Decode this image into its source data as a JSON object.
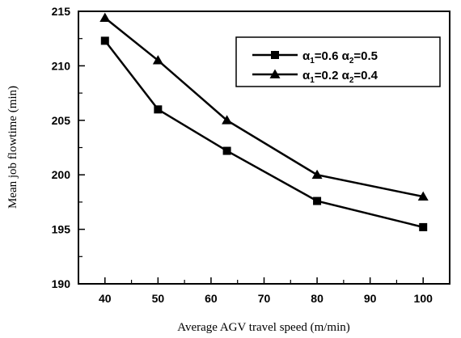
{
  "chart_data": {
    "type": "line",
    "title": "",
    "xlabel": "Average AGV travel speed (m/min)",
    "ylabel": "Mean job flowtime (min)",
    "xlim": [
      35,
      105
    ],
    "ylim": [
      190,
      215
    ],
    "xticks": [
      40,
      50,
      60,
      70,
      80,
      90,
      100
    ],
    "yticks": [
      190,
      195,
      200,
      205,
      210,
      215
    ],
    "grid": false,
    "legend_position": "top-right",
    "series": [
      {
        "name": "α1=0.6 α2=0.5",
        "marker": "square",
        "color": "#000000",
        "x": [
          40,
          50,
          63,
          80,
          100
        ],
        "y": [
          212.3,
          206.0,
          202.2,
          197.6,
          195.2
        ]
      },
      {
        "name": "α1=0.2 α2=0.4",
        "marker": "triangle",
        "color": "#000000",
        "x": [
          40,
          50,
          63,
          80,
          100
        ],
        "y": [
          214.4,
          210.5,
          205.0,
          200.0,
          198.0
        ]
      }
    ],
    "legend": [
      {
        "alpha": "α",
        "sub1": "1",
        "v1": "=0.6 ",
        "alpha2": "α",
        "sub2": "2",
        "v2": "=0.5"
      },
      {
        "alpha": "α",
        "sub1": "1",
        "v1": "=0.2 ",
        "alpha2": "α",
        "sub2": "2",
        "v2": "=0.4"
      }
    ]
  }
}
